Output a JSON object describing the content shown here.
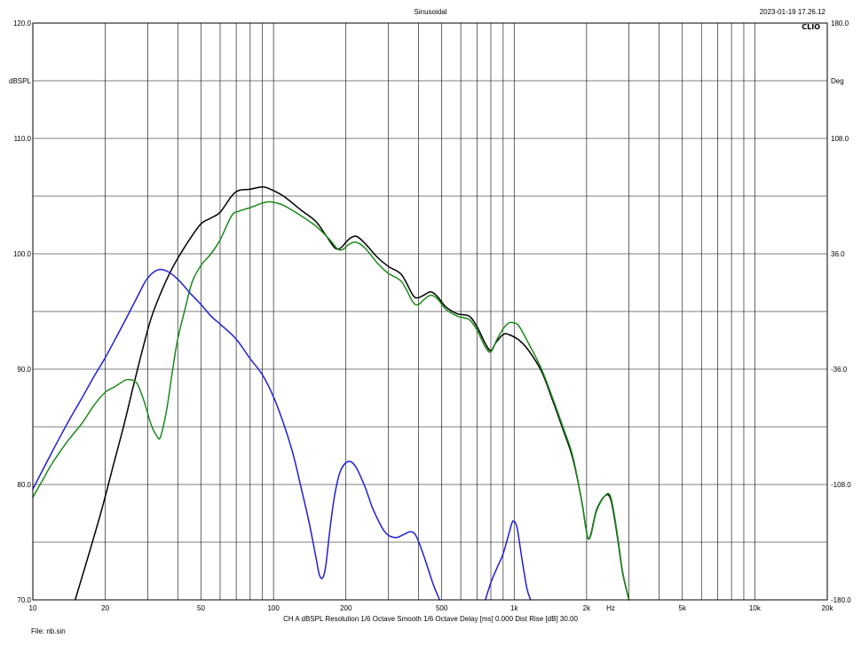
{
  "header": {
    "title": "Sinusoidal",
    "timestamp": "2023-01-19 17.26.12",
    "logo": "CLIO"
  },
  "footer": {
    "settings": "CH A   dBSPL   Resolution 1/6 Octave   Smooth 1/6 Octave   Delay [ms] 0.000   Dist Rise [dB] 30.00",
    "file": "File: nb.sin"
  },
  "colors": {
    "grid": "#000000",
    "series_black": "#000000",
    "series_green": "#1a8a1a",
    "series_blue": "#1f1fd6"
  },
  "chart_data": {
    "type": "line",
    "xscale": "log",
    "xlim": [
      10,
      20000
    ],
    "ylim": [
      70,
      120
    ],
    "y2lim": [
      -180,
      180
    ],
    "xlabel": "Hz",
    "ylabel": "dBSPL",
    "y2label": "Deg",
    "x_ticks": [
      {
        "v": 10,
        "label": "10"
      },
      {
        "v": 20,
        "label": "20"
      },
      {
        "v": 50,
        "label": "50"
      },
      {
        "v": 100,
        "label": "100"
      },
      {
        "v": 200,
        "label": "200"
      },
      {
        "v": 500,
        "label": "500"
      },
      {
        "v": 1000,
        "label": "1k"
      },
      {
        "v": 2000,
        "label": "2k"
      },
      {
        "v": 5000,
        "label": "5k"
      },
      {
        "v": 10000,
        "label": "10k"
      },
      {
        "v": 20000,
        "label": "20k"
      }
    ],
    "y_ticks": [
      {
        "v": 120,
        "label": "120.0"
      },
      {
        "v": 110,
        "label": "110.0"
      },
      {
        "v": 100,
        "label": "100.0"
      },
      {
        "v": 90,
        "label": "90.0"
      },
      {
        "v": 80,
        "label": "80.0"
      },
      {
        "v": 70,
        "label": "70.0"
      }
    ],
    "y2_ticks": [
      {
        "v": 180,
        "label": "180.0"
      },
      {
        "v": 108,
        "label": "108.0"
      },
      {
        "v": 36,
        "label": "36.0"
      },
      {
        "v": -36,
        "label": "-36.0"
      },
      {
        "v": -108,
        "label": "-108.0"
      },
      {
        "v": -180,
        "label": "-180.0"
      }
    ],
    "grid": true,
    "series": [
      {
        "color": "#000000",
        "points": [
          [
            15,
            70
          ],
          [
            17,
            73.8
          ],
          [
            19.2,
            77.6
          ],
          [
            21.5,
            81.5
          ],
          [
            24,
            85.3
          ],
          [
            26,
            88.3
          ],
          [
            28.4,
            91.5
          ],
          [
            31,
            94.4
          ],
          [
            34,
            96.6
          ],
          [
            37,
            98.3
          ],
          [
            40,
            99.6
          ],
          [
            45,
            101.3
          ],
          [
            50,
            102.6
          ],
          [
            55,
            103.1
          ],
          [
            60,
            103.6
          ],
          [
            67,
            105
          ],
          [
            72,
            105.5
          ],
          [
            80,
            105.6
          ],
          [
            90,
            105.8
          ],
          [
            97,
            105.6
          ],
          [
            110,
            105
          ],
          [
            130,
            103.8
          ],
          [
            150,
            102.8
          ],
          [
            165,
            101.6
          ],
          [
            180,
            100.5
          ],
          [
            190,
            100.5
          ],
          [
            200,
            101
          ],
          [
            210,
            101.4
          ],
          [
            222,
            101.5
          ],
          [
            240,
            100.9
          ],
          [
            270,
            99.7
          ],
          [
            300,
            98.9
          ],
          [
            340,
            98.2
          ],
          [
            380,
            96.4
          ],
          [
            400,
            96.2
          ],
          [
            420,
            96.4
          ],
          [
            450,
            96.7
          ],
          [
            480,
            96.3
          ],
          [
            520,
            95.4
          ],
          [
            580,
            94.8
          ],
          [
            650,
            94.6
          ],
          [
            700,
            93.7
          ],
          [
            760,
            92.2
          ],
          [
            800,
            91.6
          ],
          [
            840,
            92.3
          ],
          [
            900,
            93
          ],
          [
            950,
            93
          ],
          [
            1050,
            92.5
          ],
          [
            1150,
            91.6
          ],
          [
            1300,
            89.8
          ],
          [
            1450,
            87.2
          ],
          [
            1600,
            84.7
          ],
          [
            1750,
            82.3
          ],
          [
            1900,
            78.8
          ],
          [
            1980,
            76.4
          ],
          [
            2030,
            75.3
          ],
          [
            2090,
            75.8
          ],
          [
            2200,
            77.8
          ],
          [
            2380,
            79
          ],
          [
            2520,
            78.7
          ],
          [
            2680,
            75.6
          ],
          [
            2820,
            72.4
          ],
          [
            3000,
            70
          ]
        ]
      },
      {
        "color": "#1a8a1a",
        "points": [
          [
            10,
            78.9
          ],
          [
            11,
            80.4
          ],
          [
            12,
            81.8
          ],
          [
            14,
            83.8
          ],
          [
            16,
            85.3
          ],
          [
            18,
            86.9
          ],
          [
            20,
            88
          ],
          [
            22,
            88.5
          ],
          [
            24,
            89
          ],
          [
            25,
            89.1
          ],
          [
            27,
            88.8
          ],
          [
            29,
            87.2
          ],
          [
            31,
            85.2
          ],
          [
            33,
            84.1
          ],
          [
            34,
            84.2
          ],
          [
            36,
            86.5
          ],
          [
            38,
            89.8
          ],
          [
            40,
            92.6
          ],
          [
            43,
            95.3
          ],
          [
            46,
            97.6
          ],
          [
            50,
            99
          ],
          [
            55,
            100
          ],
          [
            60,
            101.2
          ],
          [
            67,
            103.3
          ],
          [
            72,
            103.7
          ],
          [
            80,
            104
          ],
          [
            90,
            104.4
          ],
          [
            97,
            104.5
          ],
          [
            110,
            104.2
          ],
          [
            130,
            103.3
          ],
          [
            150,
            102.4
          ],
          [
            170,
            101.3
          ],
          [
            185,
            100.4
          ],
          [
            195,
            100.4
          ],
          [
            205,
            100.8
          ],
          [
            220,
            101
          ],
          [
            240,
            100.5
          ],
          [
            270,
            99.2
          ],
          [
            300,
            98.3
          ],
          [
            340,
            97.6
          ],
          [
            380,
            95.8
          ],
          [
            400,
            95.6
          ],
          [
            420,
            96
          ],
          [
            450,
            96.4
          ],
          [
            480,
            96.1
          ],
          [
            520,
            95.2
          ],
          [
            580,
            94.6
          ],
          [
            650,
            94.3
          ],
          [
            700,
            93.4
          ],
          [
            760,
            91.9
          ],
          [
            800,
            91.5
          ],
          [
            850,
            92.6
          ],
          [
            900,
            93.5
          ],
          [
            950,
            94
          ],
          [
            1000,
            94
          ],
          [
            1050,
            93.7
          ],
          [
            1150,
            92.2
          ],
          [
            1300,
            90
          ],
          [
            1450,
            87.4
          ],
          [
            1600,
            84.9
          ],
          [
            1750,
            82.5
          ],
          [
            1900,
            78.8
          ],
          [
            1980,
            76.4
          ],
          [
            2030,
            75.3
          ],
          [
            2090,
            75.7
          ],
          [
            2200,
            77.7
          ],
          [
            2380,
            79
          ],
          [
            2520,
            78.9
          ],
          [
            2680,
            75.8
          ],
          [
            2820,
            72.5
          ],
          [
            3000,
            70
          ]
        ]
      },
      {
        "color": "#1f1fd6",
        "points": [
          [
            10,
            79.6
          ],
          [
            12,
            82.8
          ],
          [
            14,
            85.4
          ],
          [
            16,
            87.5
          ],
          [
            18,
            89.4
          ],
          [
            20,
            91
          ],
          [
            22,
            92.6
          ],
          [
            25,
            94.8
          ],
          [
            28,
            96.8
          ],
          [
            30,
            97.9
          ],
          [
            33,
            98.6
          ],
          [
            36,
            98.5
          ],
          [
            40,
            97.8
          ],
          [
            45,
            96.6
          ],
          [
            50,
            95.6
          ],
          [
            55,
            94.6
          ],
          [
            60,
            93.9
          ],
          [
            70,
            92.6
          ],
          [
            80,
            90.9
          ],
          [
            90,
            89.5
          ],
          [
            100,
            87.6
          ],
          [
            110,
            85.3
          ],
          [
            120,
            82.8
          ],
          [
            130,
            79.8
          ],
          [
            140,
            76.9
          ],
          [
            150,
            73.7
          ],
          [
            155,
            72.2
          ],
          [
            160,
            71.9
          ],
          [
            165,
            73
          ],
          [
            172,
            76.3
          ],
          [
            180,
            79.2
          ],
          [
            190,
            81.2
          ],
          [
            205,
            82
          ],
          [
            220,
            81.5
          ],
          [
            240,
            79.8
          ],
          [
            260,
            77.8
          ],
          [
            290,
            75.9
          ],
          [
            320,
            75.4
          ],
          [
            350,
            75.7
          ],
          [
            370,
            75.9
          ],
          [
            390,
            75.6
          ],
          [
            420,
            73.9
          ],
          [
            460,
            71.4
          ],
          [
            490,
            70
          ]
        ]
      },
      {
        "color": "#1f1fd6",
        "points": [
          [
            760,
            70
          ],
          [
            800,
            71.5
          ],
          [
            850,
            72.8
          ],
          [
            900,
            74
          ],
          [
            950,
            75.7
          ],
          [
            980,
            76.7
          ],
          [
            1000,
            76.8
          ],
          [
            1030,
            76.2
          ],
          [
            1080,
            73.4
          ],
          [
            1130,
            71
          ],
          [
            1170,
            70
          ]
        ]
      }
    ]
  }
}
